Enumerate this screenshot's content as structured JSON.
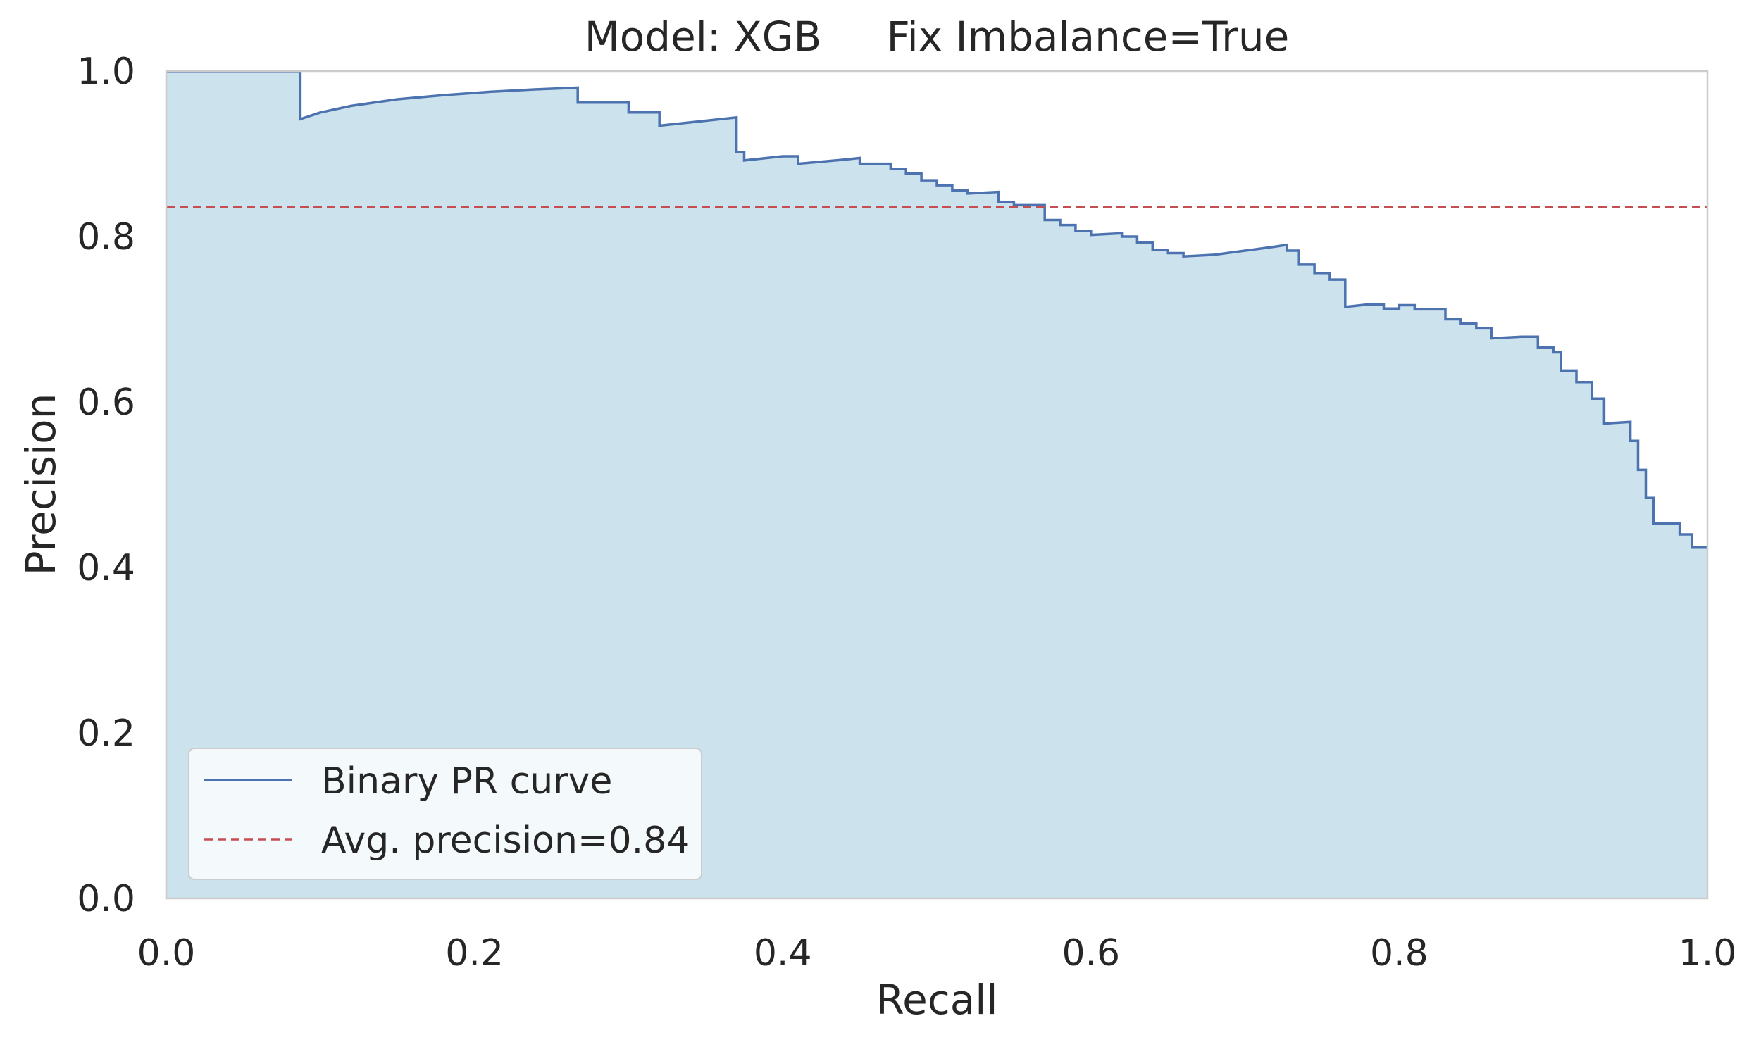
{
  "chart_data": {
    "type": "line",
    "title": "Model: XGB     Fix Imbalance=True",
    "xlabel": "Recall",
    "ylabel": "Precision",
    "xlim": [
      0.0,
      1.0
    ],
    "ylim": [
      0.0,
      1.0
    ],
    "xticks": [
      "0.0",
      "0.2",
      "0.4",
      "0.6",
      "0.8",
      "1.0"
    ],
    "yticks": [
      "0.0",
      "0.2",
      "0.4",
      "0.6",
      "0.8",
      "1.0"
    ],
    "grid": false,
    "legend_position": "lower-left",
    "colors": {
      "curve": "#4c72b0",
      "fill": "#cce2ed",
      "avg_line": "#c44e52",
      "frame": "#cccccc"
    },
    "series": [
      {
        "name": "Binary PR curve",
        "step": "post",
        "filled": true,
        "points": [
          [
            0.0,
            1.0
          ],
          [
            0.087,
            1.0
          ],
          [
            0.087,
            0.942
          ],
          [
            0.1,
            0.95
          ],
          [
            0.12,
            0.958
          ],
          [
            0.15,
            0.966
          ],
          [
            0.18,
            0.971
          ],
          [
            0.21,
            0.975
          ],
          [
            0.24,
            0.978
          ],
          [
            0.267,
            0.98
          ],
          [
            0.267,
            0.962
          ],
          [
            0.3,
            0.962
          ],
          [
            0.3,
            0.95
          ],
          [
            0.32,
            0.95
          ],
          [
            0.32,
            0.934
          ],
          [
            0.35,
            0.94
          ],
          [
            0.37,
            0.944
          ],
          [
            0.37,
            0.902
          ],
          [
            0.375,
            0.902
          ],
          [
            0.375,
            0.892
          ],
          [
            0.4,
            0.897
          ],
          [
            0.41,
            0.897
          ],
          [
            0.41,
            0.888
          ],
          [
            0.44,
            0.893
          ],
          [
            0.45,
            0.895
          ],
          [
            0.45,
            0.888
          ],
          [
            0.47,
            0.888
          ],
          [
            0.47,
            0.882
          ],
          [
            0.48,
            0.882
          ],
          [
            0.48,
            0.876
          ],
          [
            0.49,
            0.876
          ],
          [
            0.49,
            0.868
          ],
          [
            0.5,
            0.868
          ],
          [
            0.5,
            0.862
          ],
          [
            0.51,
            0.862
          ],
          [
            0.51,
            0.856
          ],
          [
            0.52,
            0.856
          ],
          [
            0.52,
            0.852
          ],
          [
            0.54,
            0.854
          ],
          [
            0.54,
            0.842
          ],
          [
            0.55,
            0.842
          ],
          [
            0.55,
            0.838
          ],
          [
            0.57,
            0.838
          ],
          [
            0.57,
            0.82
          ],
          [
            0.58,
            0.82
          ],
          [
            0.58,
            0.814
          ],
          [
            0.59,
            0.814
          ],
          [
            0.59,
            0.807
          ],
          [
            0.6,
            0.807
          ],
          [
            0.6,
            0.802
          ],
          [
            0.62,
            0.804
          ],
          [
            0.62,
            0.8
          ],
          [
            0.63,
            0.8
          ],
          [
            0.63,
            0.793
          ],
          [
            0.64,
            0.793
          ],
          [
            0.64,
            0.784
          ],
          [
            0.65,
            0.784
          ],
          [
            0.65,
            0.78
          ],
          [
            0.66,
            0.78
          ],
          [
            0.66,
            0.776
          ],
          [
            0.68,
            0.778
          ],
          [
            0.7,
            0.783
          ],
          [
            0.72,
            0.788
          ],
          [
            0.727,
            0.79
          ],
          [
            0.727,
            0.783
          ],
          [
            0.735,
            0.783
          ],
          [
            0.735,
            0.766
          ],
          [
            0.745,
            0.766
          ],
          [
            0.745,
            0.756
          ],
          [
            0.755,
            0.756
          ],
          [
            0.755,
            0.748
          ],
          [
            0.765,
            0.748
          ],
          [
            0.765,
            0.715
          ],
          [
            0.78,
            0.718
          ],
          [
            0.79,
            0.718
          ],
          [
            0.79,
            0.713
          ],
          [
            0.8,
            0.713
          ],
          [
            0.8,
            0.717
          ],
          [
            0.81,
            0.717
          ],
          [
            0.81,
            0.712
          ],
          [
            0.83,
            0.712
          ],
          [
            0.83,
            0.7
          ],
          [
            0.84,
            0.7
          ],
          [
            0.84,
            0.695
          ],
          [
            0.85,
            0.695
          ],
          [
            0.85,
            0.689
          ],
          [
            0.86,
            0.689
          ],
          [
            0.86,
            0.677
          ],
          [
            0.88,
            0.679
          ],
          [
            0.89,
            0.679
          ],
          [
            0.89,
            0.666
          ],
          [
            0.9,
            0.666
          ],
          [
            0.9,
            0.66
          ],
          [
            0.905,
            0.66
          ],
          [
            0.905,
            0.638
          ],
          [
            0.915,
            0.638
          ],
          [
            0.915,
            0.624
          ],
          [
            0.925,
            0.624
          ],
          [
            0.925,
            0.604
          ],
          [
            0.933,
            0.604
          ],
          [
            0.933,
            0.574
          ],
          [
            0.95,
            0.576
          ],
          [
            0.95,
            0.553
          ],
          [
            0.955,
            0.553
          ],
          [
            0.955,
            0.518
          ],
          [
            0.96,
            0.518
          ],
          [
            0.96,
            0.484
          ],
          [
            0.965,
            0.484
          ],
          [
            0.965,
            0.453
          ],
          [
            0.982,
            0.453
          ],
          [
            0.982,
            0.44
          ],
          [
            0.99,
            0.44
          ],
          [
            0.99,
            0.424
          ],
          [
            1.0,
            0.424
          ]
        ]
      },
      {
        "name": "Avg. precision=0.84",
        "dashed": true,
        "y": 0.836
      }
    ]
  }
}
